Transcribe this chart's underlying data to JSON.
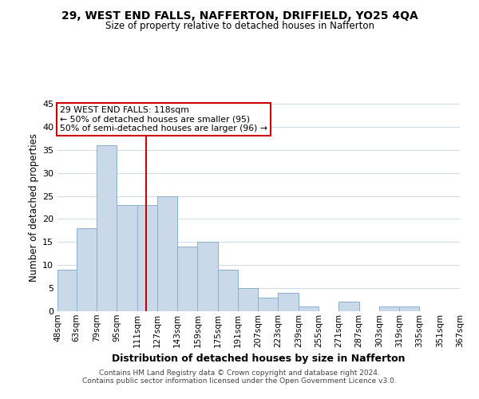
{
  "title": "29, WEST END FALLS, NAFFERTON, DRIFFIELD, YO25 4QA",
  "subtitle": "Size of property relative to detached houses in Nafferton",
  "xlabel": "Distribution of detached houses by size in Nafferton",
  "ylabel": "Number of detached properties",
  "bin_labels": [
    "48sqm",
    "63sqm",
    "79sqm",
    "95sqm",
    "111sqm",
    "127sqm",
    "143sqm",
    "159sqm",
    "175sqm",
    "191sqm",
    "207sqm",
    "223sqm",
    "239sqm",
    "255sqm",
    "271sqm",
    "287sqm",
    "303sqm",
    "319sqm",
    "335sqm",
    "351sqm",
    "367sqm"
  ],
  "bin_edges": [
    48,
    63,
    79,
    95,
    111,
    127,
    143,
    159,
    175,
    191,
    207,
    223,
    239,
    255,
    271,
    287,
    303,
    319,
    335,
    351,
    367
  ],
  "bar_heights": [
    9,
    18,
    36,
    23,
    23,
    25,
    14,
    15,
    9,
    5,
    3,
    4,
    1,
    0,
    2,
    0,
    1,
    1,
    0,
    0
  ],
  "bar_color": "#c9d9ea",
  "bar_edgecolor": "#8ab0cc",
  "ylim": [
    0,
    45
  ],
  "yticks": [
    0,
    5,
    10,
    15,
    20,
    25,
    30,
    35,
    40,
    45
  ],
  "vline_x": 118,
  "vline_color": "#cc0000",
  "annotation_title": "29 WEST END FALLS: 118sqm",
  "annotation_line1": "← 50% of detached houses are smaller (95)",
  "annotation_line2": "50% of semi-detached houses are larger (96) →",
  "annotation_box_edgecolor": "#cc0000",
  "footer_line1": "Contains HM Land Registry data © Crown copyright and database right 2024.",
  "footer_line2": "Contains public sector information licensed under the Open Government Licence v3.0.",
  "background_color": "#ffffff",
  "grid_color": "#d0dce8"
}
